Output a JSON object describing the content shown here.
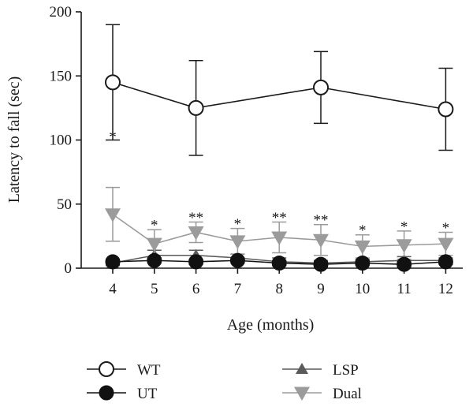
{
  "chart_data": {
    "type": "line",
    "title": "",
    "xlabel": "Age (months)",
    "ylabel": "Latency to fall (sec)",
    "categories": [
      "4",
      "5",
      "6",
      "7",
      "8",
      "9",
      "10",
      "11",
      "12"
    ],
    "ylim": [
      0,
      200
    ],
    "yticks": [
      0,
      50,
      100,
      150,
      200
    ],
    "grid": false,
    "legend_position": "bottom",
    "series": [
      {
        "name": "WT",
        "color": "#1a1a1a",
        "marker": "open-circle",
        "x": [
          4,
          6,
          9,
          12
        ],
        "values": [
          145,
          125,
          141,
          124
        ],
        "err": [
          45,
          37,
          28,
          32
        ]
      },
      {
        "name": "LSP",
        "color": "#5a5a5a",
        "marker": "triangle-up",
        "x": [
          4,
          5,
          6,
          7,
          8,
          9,
          10,
          11,
          12
        ],
        "values": [
          4,
          10,
          10,
          8,
          5,
          4,
          5,
          6,
          6
        ],
        "err": [
          2,
          4,
          4,
          3,
          3,
          2,
          2,
          3,
          2
        ]
      },
      {
        "name": "Dual",
        "color": "#9b9b9b",
        "marker": "triangle-down",
        "x": [
          4,
          5,
          6,
          7,
          8,
          9,
          10,
          11,
          12
        ],
        "values": [
          42,
          19,
          28,
          21,
          24,
          22,
          17,
          18,
          19
        ],
        "err": [
          21,
          11,
          8,
          10,
          12,
          12,
          9,
          11,
          9
        ]
      },
      {
        "name": "UT",
        "color": "#111111",
        "marker": "filled-circle",
        "x": [
          4,
          5,
          6,
          7,
          8,
          9,
          10,
          11,
          12
        ],
        "values": [
          5,
          6,
          5,
          6,
          4,
          3,
          4,
          3,
          5
        ],
        "err": [
          2,
          2,
          2,
          2,
          2,
          2,
          2,
          2,
          2
        ]
      }
    ],
    "annotations": [
      {
        "x": 4,
        "y": 100,
        "text": "*"
      },
      {
        "x": 5,
        "y": 31,
        "text": "*"
      },
      {
        "x": 6,
        "y": 37,
        "text": "**"
      },
      {
        "x": 7,
        "y": 32,
        "text": "*"
      },
      {
        "x": 8,
        "y": 37,
        "text": "**"
      },
      {
        "x": 9,
        "y": 35,
        "text": "**"
      },
      {
        "x": 10,
        "y": 27,
        "text": "*"
      },
      {
        "x": 11,
        "y": 30,
        "text": "*"
      },
      {
        "x": 12,
        "y": 29,
        "text": "*"
      }
    ]
  }
}
